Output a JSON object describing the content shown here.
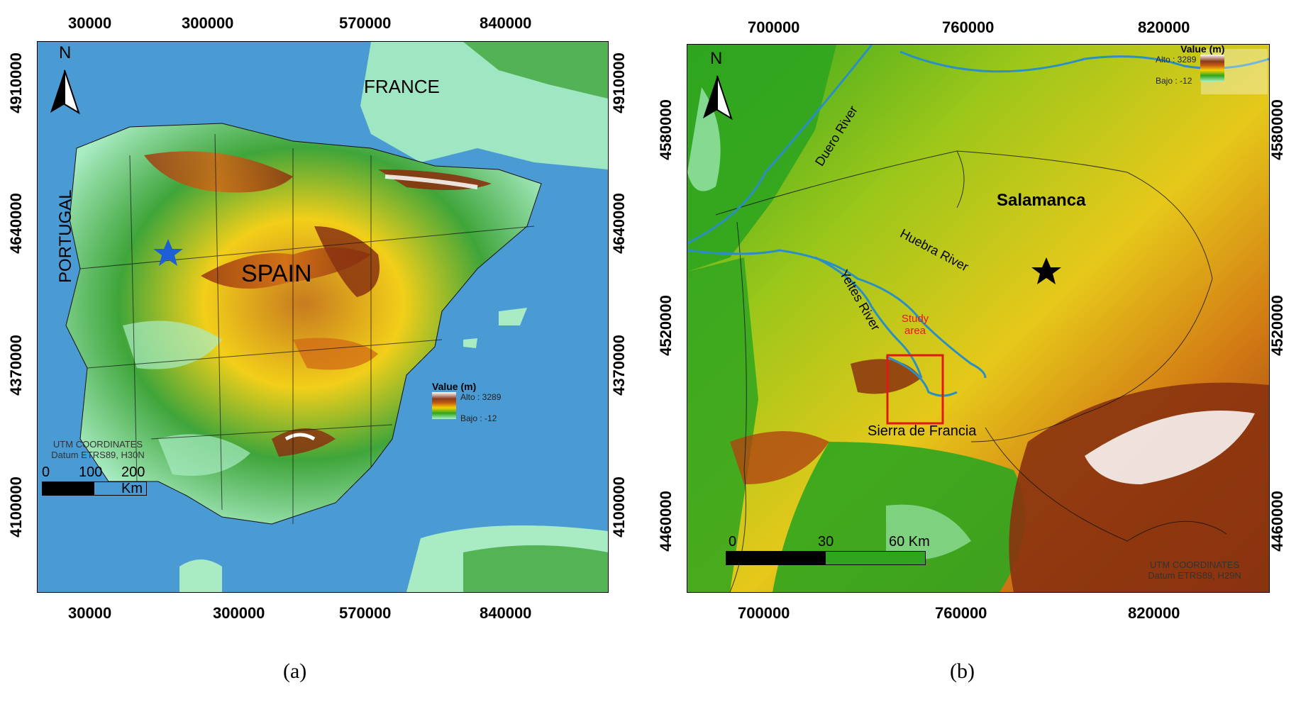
{
  "panel_a": {
    "caption": "(a)",
    "x_ticks": [
      "30000",
      "300000",
      "570000",
      "840000"
    ],
    "y_ticks": [
      "4910000",
      "4640000",
      "4370000",
      "4100000"
    ],
    "labels": {
      "france": "FRANCE",
      "spain": "SPAIN",
      "portugal": "PORTUGAL"
    },
    "legend": {
      "title": "Value (m)",
      "high": "Alto : 3289",
      "low": "Bajo : -12"
    },
    "scale": {
      "labels": [
        "0",
        "100",
        "200 Km"
      ]
    },
    "coordinates": {
      "line1": "UTM COORDINATES",
      "line2": "Datum ETRS89, H30N"
    },
    "north": "N",
    "colors": {
      "sea": "#4a9bd4",
      "star": "#1e5fd6"
    }
  },
  "panel_b": {
    "caption": "(b)",
    "x_ticks": [
      "700000",
      "760000",
      "820000"
    ],
    "y_ticks": [
      "4580000",
      "4520000",
      "4460000"
    ],
    "labels": {
      "salamanca": "Salamanca",
      "study_area_1": "Study",
      "study_area_2": "area",
      "sierra": "Sierra de Francia",
      "duero": "Duero River",
      "huebra": "Huebra River",
      "yeltes": "Yeltes River"
    },
    "legend": {
      "title": "Value (m)",
      "high": "Alto : 3289",
      "low": "Bajo : -12"
    },
    "scale": {
      "labels": [
        "0",
        "30",
        "60 Km"
      ]
    },
    "coordinates": {
      "line1": "UTM COORDINATES",
      "line2": "Datum ETRS89, H29N"
    },
    "north": "N",
    "colors": {
      "river": "#2b8fc4",
      "study_box": "#e01818"
    }
  }
}
